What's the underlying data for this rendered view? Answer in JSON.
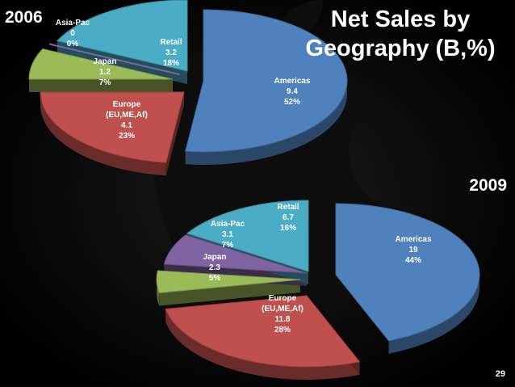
{
  "slide": {
    "title": "Net Sales by Geography (B,%)",
    "page_number": "29"
  },
  "colors": {
    "Americas": "#4f81bd",
    "Europe": "#c0504d",
    "Japan": "#9bbb59",
    "Asia-Pac": "#8064a2",
    "Retail": "#4bacc6"
  },
  "chart_data": [
    {
      "type": "pie",
      "title": "2006",
      "slices": [
        {
          "name": "Americas",
          "lines": [
            "Americas",
            "9.4",
            "52%"
          ],
          "value": 9.4,
          "percent": 52
        },
        {
          "name": "Europe",
          "lines": [
            "Europe",
            "(EU,ME,Af)",
            "4.1",
            "23%"
          ],
          "value": 4.1,
          "percent": 23
        },
        {
          "name": "Japan",
          "lines": [
            "Japan",
            "1.2",
            "7%"
          ],
          "value": 1.2,
          "percent": 7
        },
        {
          "name": "Asia-Pac",
          "lines": [
            "Asia-Pac",
            "0",
            "0%"
          ],
          "value": 0,
          "percent": 0
        },
        {
          "name": "Retail",
          "lines": [
            "Retail",
            "3.2",
            "18%"
          ],
          "value": 3.2,
          "percent": 18
        }
      ]
    },
    {
      "type": "pie",
      "title": "2009",
      "slices": [
        {
          "name": "Americas",
          "lines": [
            "Americas",
            "19",
            "44%"
          ],
          "value": 19,
          "percent": 44
        },
        {
          "name": "Europe",
          "lines": [
            "Europe",
            "(EU,ME,Af)",
            "11.8",
            "28%"
          ],
          "value": 11.8,
          "percent": 28
        },
        {
          "name": "Japan",
          "lines": [
            "Japan",
            "2.3",
            "5%"
          ],
          "value": 2.3,
          "percent": 5
        },
        {
          "name": "Asia-Pac",
          "lines": [
            "Asia-Pac",
            "3.1",
            "7%"
          ],
          "value": 3.1,
          "percent": 7
        },
        {
          "name": "Retail",
          "lines": [
            "Retail",
            "6.7",
            "16%"
          ],
          "value": 6.7,
          "percent": 16
        }
      ]
    }
  ]
}
